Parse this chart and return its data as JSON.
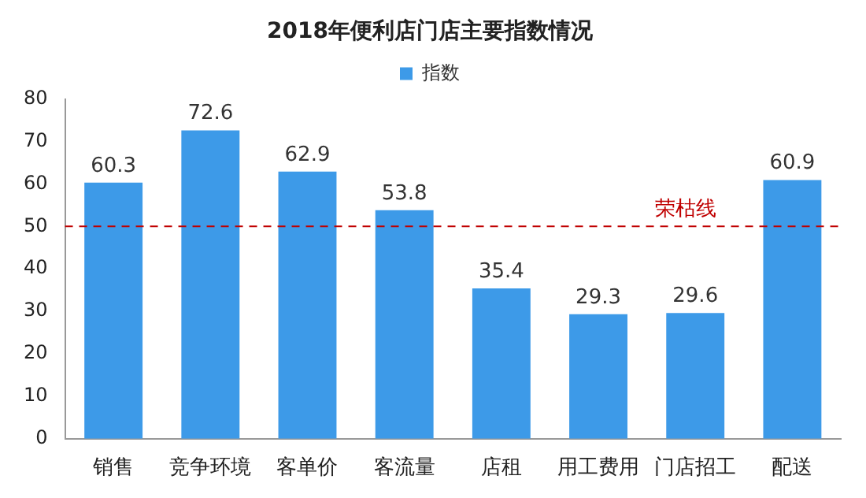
{
  "chart_data": {
    "type": "bar",
    "title": "2018年便利店门店主要指数情况",
    "categories": [
      "销售",
      "竞争环境",
      "客单价",
      "客流量",
      "店租",
      "用工费用",
      "门店招工",
      "配送"
    ],
    "series": [
      {
        "name": "指数",
        "color": "#3d9ae8",
        "values": [
          60.3,
          72.6,
          62.9,
          53.8,
          35.4,
          29.3,
          29.6,
          60.9
        ]
      }
    ],
    "ylim": [
      0,
      80
    ],
    "yticks": [
      0,
      10,
      20,
      30,
      40,
      50,
      60,
      70,
      80
    ],
    "grid": false,
    "legend": "top",
    "data_labels": true,
    "ref_lines": [
      {
        "axis": "y",
        "value": 50,
        "label": "荣枯线",
        "color": "#c00000",
        "line_style": "dashed"
      }
    ]
  }
}
